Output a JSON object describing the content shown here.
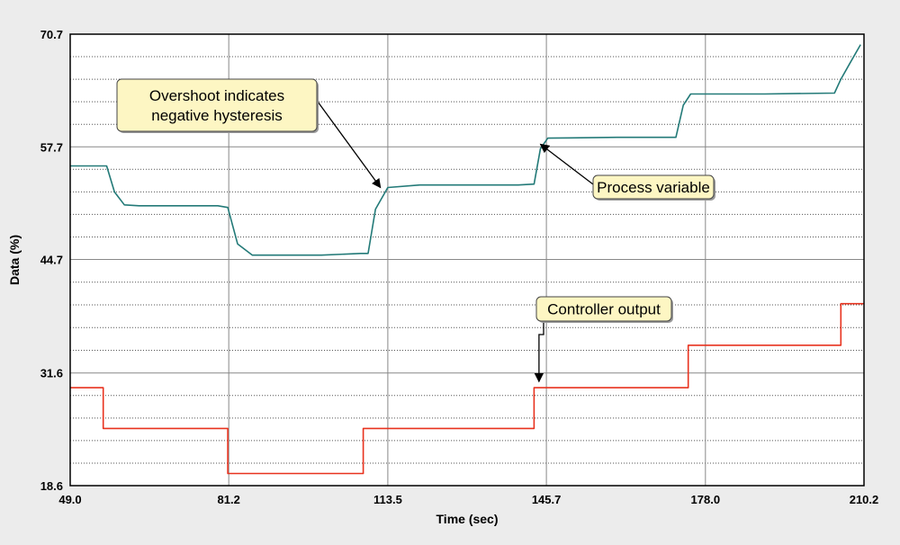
{
  "chart_data": {
    "type": "line",
    "xlabel": "Time (sec)",
    "ylabel": "Data (%)",
    "xlim": [
      49.0,
      210.2
    ],
    "ylim": [
      18.6,
      70.7
    ],
    "x_ticks": [
      "49.0",
      "81.2",
      "113.5",
      "145.7",
      "178.0",
      "210.2"
    ],
    "y_ticks": [
      "18.6",
      "31.6",
      "44.7",
      "57.7",
      "70.7"
    ],
    "grid": true,
    "colors": {
      "process_variable": "#237a78",
      "controller_output": "#e8321e"
    },
    "series": [
      {
        "key": "process_variable",
        "x": [
          49.0,
          56.4,
          58.0,
          60.0,
          63.0,
          73.0,
          79.0,
          81.0,
          83.0,
          86.0,
          100.0,
          108.0,
          109.5,
          111.0,
          113.5,
          120.0,
          140.0,
          143.2,
          144.5,
          146.0,
          160.0,
          172.0,
          173.5,
          175.0,
          190.0,
          204.2,
          205.5,
          207.5,
          209.5
        ],
        "y": [
          55.5,
          55.5,
          52.5,
          51.0,
          50.9,
          50.9,
          50.9,
          50.7,
          46.5,
          45.2,
          45.2,
          45.4,
          45.4,
          50.5,
          53.0,
          53.3,
          53.3,
          53.4,
          57.5,
          58.7,
          58.8,
          58.8,
          62.5,
          63.8,
          63.8,
          63.9,
          65.5,
          67.5,
          69.5
        ]
      },
      {
        "key": "controller_output",
        "x": [
          49.0,
          55.7,
          55.7,
          81.0,
          81.0,
          108.5,
          108.5,
          143.2,
          143.2,
          174.5,
          174.5,
          205.5,
          205.5,
          210.2
        ],
        "y": [
          29.9,
          29.9,
          25.2,
          25.2,
          20.0,
          20.0,
          25.2,
          25.2,
          29.9,
          29.9,
          34.8,
          34.8,
          39.6,
          39.6
        ]
      }
    ],
    "annotations": [
      {
        "text_lines": [
          "Overshoot indicates",
          "negative hysteresis"
        ],
        "arrow_to": [
          112.0,
          53.0
        ]
      },
      {
        "text_lines": [
          "Process variable"
        ],
        "arrow_to": [
          144.5,
          58.0
        ]
      },
      {
        "text_lines": [
          "Controller output"
        ],
        "arrow_to": [
          144.2,
          30.6
        ]
      }
    ]
  }
}
